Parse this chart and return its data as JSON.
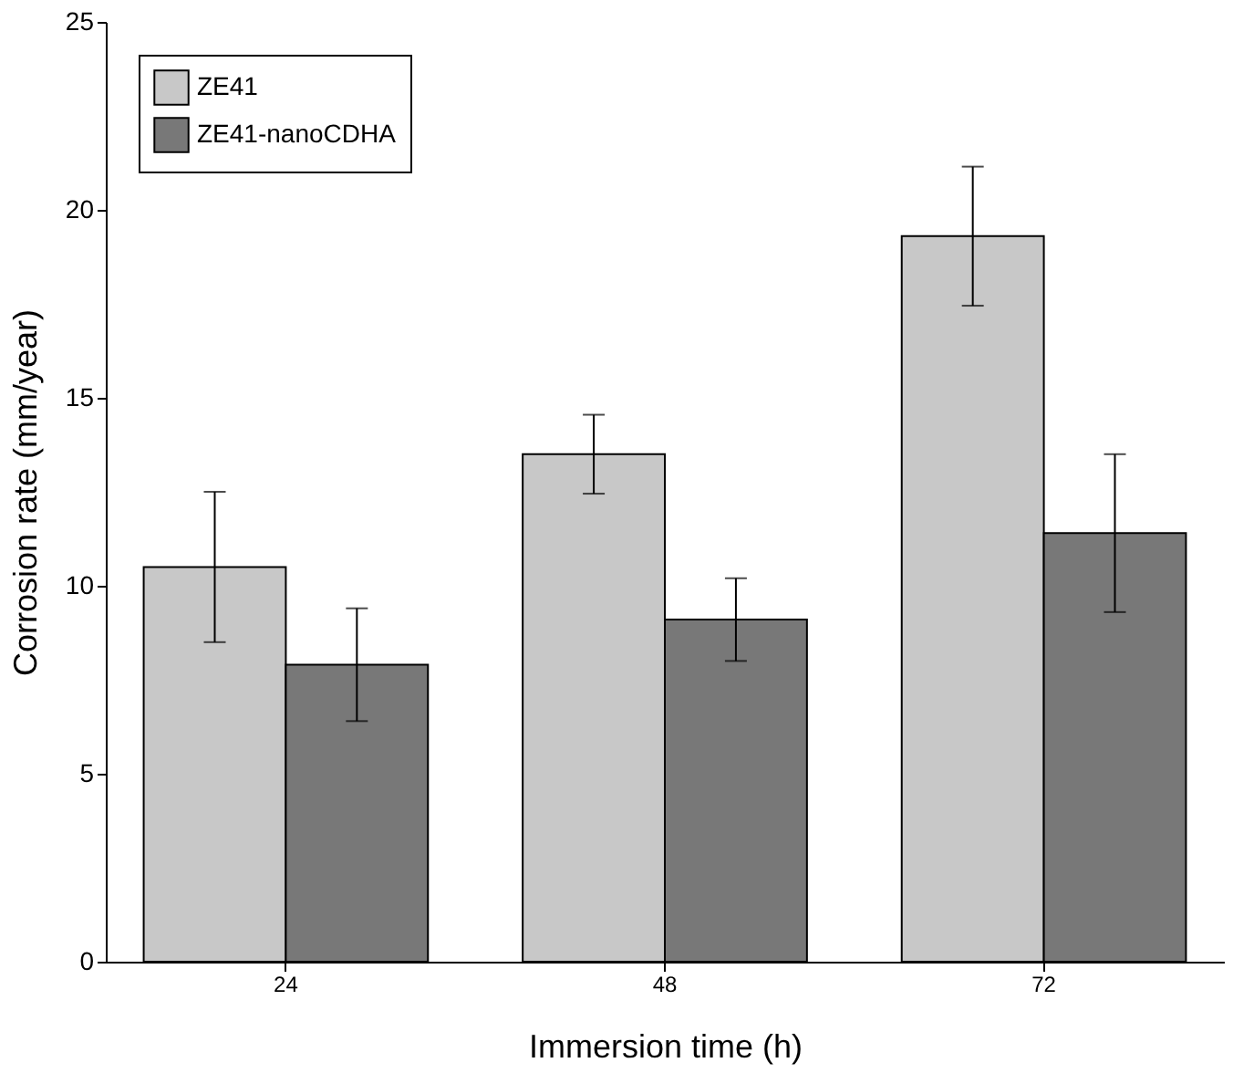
{
  "chart_data": {
    "type": "bar",
    "xlabel": "Immersion time (h)",
    "ylabel": "Corrosion rate (mm/year)",
    "categories": [
      "24",
      "48",
      "72"
    ],
    "series": [
      {
        "name": "ZE41",
        "color": "#c8c8c8",
        "values": [
          10.5,
          13.5,
          19.3
        ],
        "errors": [
          2.0,
          1.05,
          1.85
        ]
      },
      {
        "name": "ZE41-nanoCDHA",
        "color": "#787878",
        "values": [
          7.9,
          9.1,
          11.4
        ],
        "errors": [
          1.5,
          1.1,
          2.1
        ]
      }
    ],
    "ylim": [
      0,
      25
    ],
    "yticks": [
      0,
      5,
      10,
      15,
      20,
      25
    ],
    "grid": false,
    "legend": "top left"
  }
}
